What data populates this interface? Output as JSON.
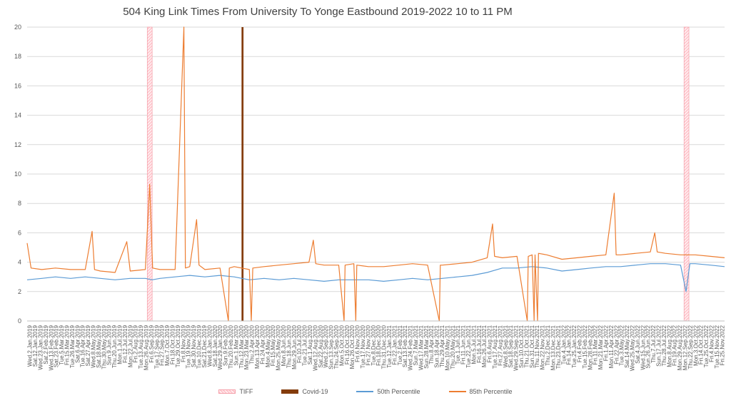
{
  "chart_data": {
    "type": "line",
    "title": "504 King Link Times From University To Yonge Eastbound 2019-2022 10 to 11 PM",
    "ylim": [
      0,
      20
    ],
    "yticks": [
      0,
      2,
      4,
      6,
      8,
      10,
      12,
      14,
      16,
      18,
      20
    ],
    "xlim": [
      "2019-01-02",
      "2022-11-30"
    ],
    "grid": "horizontal",
    "legend_position": "bottom",
    "x_tick_labels": [
      "Wed.2.Jan.2019",
      "Sat.12.Jan.2019",
      "Wed.23.Jan.2019",
      "Sat.2.Feb.2019",
      "Wed.13.Feb.2019",
      "Sat.23.Feb.2019",
      "Tue.5.Mar.2019",
      "Fri.15.Mar.2019",
      "Tue.26.Mar.2019",
      "Sat.6.Apr.2019",
      "Tue.16.Apr.2019",
      "Sat.27.Apr.2019",
      "Wed.8.May.2019",
      "Sat.18.May.2019",
      "Thu.30.May.2019",
      "Sun.9.Jun.2019",
      "Thu.20.Jun.2019",
      "Mon.1.Jul.2019",
      "Fri.12.Jul.2019",
      "Mon.22.Jul.2019",
      "Fri.2.Aug.2019",
      "Tue.13.Aug.2019",
      "Mon.26.Aug.2019",
      "Fri.6.Sep.2019",
      "Tue.17.Sep.2019",
      "Fri.27.Sep.2019",
      "Mon.7.Oct.2019",
      "Fri.18.Oct.2019",
      "Tue.29.Oct.2019",
      "Fri.8.Nov.2019",
      "Tue.19.Nov.2019",
      "Sat.30.Nov.2019",
      "Tue.10.Dec.2019",
      "Sat.21.Dec.2019",
      "Wed.8.Jan.2020",
      "Sat.18.Jan.2020",
      "Wed.29.Jan.2020",
      "Sun.9.Feb.2020",
      "Thu.20.Feb.2020",
      "Sun.1.Mar.2020",
      "Thu.12.Mar.2020",
      "Mon.23.Mar.2020",
      "Thu.2.Apr.2020",
      "Mon.13.Apr.2020",
      "Fri.24.Apr.2020",
      "Mon.4.May.2020",
      "Fri.15.May.2020",
      "Mon.25.May.2020",
      "Mon.8.Jun.2020",
      "Thu.18.Jun.2020",
      "Mon.29.Jun.2020",
      "Fri.10.Jul.2020",
      "Tue.21.Jul.2020",
      "Sat.1.Aug.2020",
      "Wed.12.Aug.2020",
      "Sat.22.Aug.2020",
      "Wed.2.Sep.2020",
      "Sun.13.Sep.2020",
      "Thu.24.Sep.2020",
      "Mon.5.Oct.2020",
      "Fri.16.Oct.2020",
      "Mon.26.Oct.2020",
      "Fri.6.Nov.2020",
      "Tue.17.Nov.2020",
      "Fri.27.Nov.2020",
      "Tue.8.Dec.2020",
      "Fri.18.Dec.2020",
      "Thu.31.Dec.2020",
      "Tue.12.Jan.2021",
      "Fri.22.Jan.2021",
      "Tue.2.Feb.2021",
      "Sat.13.Feb.2021",
      "Wed.24.Feb.2021",
      "Sun.7.Mar.2021",
      "Wed.17.Mar.2021",
      "Sun.28.Mar.2021",
      "Thu.8.Apr.2021",
      "Sun.18.Apr.2021",
      "Thu.29.Apr.2021",
      "Mon.10.May.2021",
      "Thu.20.May.2021",
      "Tue.1.Jun.2021",
      "Fri.11.Jun.2021",
      "Tue.22.Jun.2021",
      "Mon.5.Jul.2021",
      "Fri.16.Jul.2021",
      "Mon.26.Jul.2021",
      "Fri.6.Aug.2021",
      "Tue.17.Aug.2021",
      "Fri.27.Aug.2021",
      "Wed.8.Sep.2021",
      "Sat.18.Sep.2021",
      "Wed.29.Sep.2021",
      "Sun.10.Oct.2021",
      "Thu.21.Oct.2021",
      "Sun.31.Oct.2021",
      "Thu.11.Nov.2021",
      "Mon.22.Nov.2021",
      "Thu.2.Dec.2021",
      "Mon.13.Dec.2021",
      "Thu.23.Dec.2021",
      "Tue.4.Jan.2022",
      "Fri.14.Jan.2022",
      "Tue.25.Jan.2022",
      "Fri.4.Feb.2022",
      "Tue.15.Feb.2022",
      "Mon.28.Feb.2022",
      "Fri.11.Mar.2022",
      "Mon.21.Mar.2022",
      "Fri.1.Apr.2022",
      "Mon.11.Apr.2022",
      "Fri.22.Apr.2022",
      "Tue.3.May.2022",
      "Sat.14.May.2022",
      "Wed.25.May.2022",
      "Sat.4.Jun.2022",
      "Wed.15.Jun.2022",
      "Sun.26.Jun.2022",
      "Thu.7.Jul.2022",
      "Sun.17.Jul.2022",
      "Thu.28.Jul.2022",
      "Mon.8.Aug.2022",
      "Fri.19.Aug.2022",
      "Mon.29.Aug.2022",
      "Mon.12.Sep.2022",
      "Thu.22.Sep.2022",
      "Mon.3.Oct.2022",
      "Fri.14.Oct.2022",
      "Tue.25.Oct.2022",
      "Fri.4.Nov.2022",
      "Tue.15.Nov.2022",
      "Fri.25.Nov.2022"
    ],
    "events": [
      {
        "name": "TIFF",
        "start": "2019-09-05",
        "end": "2019-09-15",
        "value": 20,
        "color": "#ffc7ce"
      },
      {
        "name": "TIFF",
        "start": "2022-09-08",
        "end": "2022-09-18",
        "value": 20,
        "color": "#ffc7ce"
      },
      {
        "name": "Covid-19",
        "start": "2020-03-16",
        "end": "2020-03-20",
        "value": 20,
        "color": "#843c0c"
      }
    ],
    "series": [
      {
        "name": "50th Percentile",
        "color": "#5b9bd5",
        "points": [
          [
            "2019-01-02",
            2.8
          ],
          [
            "2019-02-01",
            2.9
          ],
          [
            "2019-03-01",
            3.0
          ],
          [
            "2019-04-01",
            2.9
          ],
          [
            "2019-05-01",
            3.0
          ],
          [
            "2019-06-01",
            2.9
          ],
          [
            "2019-07-01",
            2.8
          ],
          [
            "2019-08-01",
            2.9
          ],
          [
            "2019-09-01",
            2.9
          ],
          [
            "2019-09-15",
            2.8
          ],
          [
            "2019-10-01",
            2.9
          ],
          [
            "2019-11-01",
            3.0
          ],
          [
            "2019-12-01",
            3.1
          ],
          [
            "2020-01-01",
            3.0
          ],
          [
            "2020-02-01",
            3.1
          ],
          [
            "2020-03-01",
            3.0
          ],
          [
            "2020-04-01",
            2.8
          ],
          [
            "2020-05-01",
            2.9
          ],
          [
            "2020-06-01",
            2.8
          ],
          [
            "2020-07-01",
            2.9
          ],
          [
            "2020-08-01",
            2.8
          ],
          [
            "2020-09-01",
            2.7
          ],
          [
            "2020-10-01",
            2.8
          ],
          [
            "2020-11-01",
            2.8
          ],
          [
            "2020-12-01",
            2.8
          ],
          [
            "2021-01-01",
            2.7
          ],
          [
            "2021-02-01",
            2.8
          ],
          [
            "2021-03-01",
            2.9
          ],
          [
            "2021-04-01",
            2.8
          ],
          [
            "2021-05-01",
            2.9
          ],
          [
            "2021-06-01",
            3.0
          ],
          [
            "2021-07-01",
            3.1
          ],
          [
            "2021-08-01",
            3.3
          ],
          [
            "2021-09-01",
            3.6
          ],
          [
            "2021-10-01",
            3.6
          ],
          [
            "2021-11-01",
            3.7
          ],
          [
            "2021-12-01",
            3.6
          ],
          [
            "2022-01-01",
            3.4
          ],
          [
            "2022-02-01",
            3.5
          ],
          [
            "2022-03-01",
            3.6
          ],
          [
            "2022-04-01",
            3.7
          ],
          [
            "2022-05-01",
            3.7
          ],
          [
            "2022-06-01",
            3.8
          ],
          [
            "2022-07-01",
            3.9
          ],
          [
            "2022-08-01",
            3.9
          ],
          [
            "2022-09-01",
            3.8
          ],
          [
            "2022-09-12",
            2.0
          ],
          [
            "2022-09-20",
            3.9
          ],
          [
            "2022-10-01",
            3.9
          ],
          [
            "2022-11-01",
            3.8
          ],
          [
            "2022-11-30",
            3.7
          ]
        ]
      },
      {
        "name": "85th Percentile",
        "color": "#ed7d31",
        "points": [
          [
            "2019-01-02",
            5.3
          ],
          [
            "2019-01-10",
            3.6
          ],
          [
            "2019-02-01",
            3.5
          ],
          [
            "2019-03-01",
            3.6
          ],
          [
            "2019-04-01",
            3.5
          ],
          [
            "2019-05-01",
            3.5
          ],
          [
            "2019-05-15",
            6.1
          ],
          [
            "2019-05-20",
            3.5
          ],
          [
            "2019-06-01",
            3.4
          ],
          [
            "2019-07-01",
            3.3
          ],
          [
            "2019-07-25",
            5.4
          ],
          [
            "2019-08-01",
            3.4
          ],
          [
            "2019-09-01",
            3.5
          ],
          [
            "2019-09-10",
            9.3
          ],
          [
            "2019-09-16",
            3.6
          ],
          [
            "2019-10-01",
            3.5
          ],
          [
            "2019-11-01",
            3.5
          ],
          [
            "2019-11-19",
            20.0
          ],
          [
            "2019-11-22",
            3.6
          ],
          [
            "2019-12-01",
            3.7
          ],
          [
            "2019-12-15",
            6.9
          ],
          [
            "2019-12-20",
            3.8
          ],
          [
            "2020-01-01",
            3.5
          ],
          [
            "2020-02-01",
            3.6
          ],
          [
            "2020-02-18",
            0.0
          ],
          [
            "2020-02-20",
            3.6
          ],
          [
            "2020-03-01",
            3.7
          ],
          [
            "2020-04-01",
            3.5
          ],
          [
            "2020-04-05",
            0.0
          ],
          [
            "2020-04-08",
            3.6
          ],
          [
            "2020-05-01",
            3.7
          ],
          [
            "2020-06-01",
            3.8
          ],
          [
            "2020-07-01",
            3.9
          ],
          [
            "2020-08-01",
            4.0
          ],
          [
            "2020-08-10",
            5.5
          ],
          [
            "2020-08-15",
            3.9
          ],
          [
            "2020-09-01",
            3.8
          ],
          [
            "2020-10-01",
            3.8
          ],
          [
            "2020-10-12",
            0.0
          ],
          [
            "2020-10-14",
            3.8
          ],
          [
            "2020-11-01",
            3.9
          ],
          [
            "2020-11-05",
            0.0
          ],
          [
            "2020-11-07",
            3.8
          ],
          [
            "2020-12-01",
            3.7
          ],
          [
            "2021-01-01",
            3.7
          ],
          [
            "2021-02-01",
            3.8
          ],
          [
            "2021-03-01",
            3.9
          ],
          [
            "2021-04-01",
            3.8
          ],
          [
            "2021-04-25",
            0.0
          ],
          [
            "2021-04-27",
            3.8
          ],
          [
            "2021-05-01",
            3.8
          ],
          [
            "2021-06-01",
            3.9
          ],
          [
            "2021-07-01",
            4.0
          ],
          [
            "2021-08-01",
            4.3
          ],
          [
            "2021-08-12",
            6.6
          ],
          [
            "2021-08-16",
            4.4
          ],
          [
            "2021-09-01",
            4.3
          ],
          [
            "2021-10-01",
            4.4
          ],
          [
            "2021-10-22",
            0.0
          ],
          [
            "2021-10-24",
            4.4
          ],
          [
            "2021-11-01",
            4.5
          ],
          [
            "2021-11-05",
            0.0
          ],
          [
            "2021-11-07",
            4.5
          ],
          [
            "2021-11-12",
            0.0
          ],
          [
            "2021-11-14",
            4.6
          ],
          [
            "2021-12-01",
            4.5
          ],
          [
            "2022-01-01",
            4.2
          ],
          [
            "2022-02-01",
            4.3
          ],
          [
            "2022-03-01",
            4.4
          ],
          [
            "2022-04-01",
            4.5
          ],
          [
            "2022-04-18",
            8.7
          ],
          [
            "2022-04-22",
            4.5
          ],
          [
            "2022-05-01",
            4.5
          ],
          [
            "2022-06-01",
            4.6
          ],
          [
            "2022-07-01",
            4.7
          ],
          [
            "2022-07-10",
            6.0
          ],
          [
            "2022-07-15",
            4.7
          ],
          [
            "2022-08-01",
            4.6
          ],
          [
            "2022-09-01",
            4.5
          ],
          [
            "2022-10-01",
            4.5
          ],
          [
            "2022-11-01",
            4.4
          ],
          [
            "2022-11-30",
            4.3
          ]
        ]
      }
    ]
  },
  "legend": {
    "tiff": "TIFF",
    "covid": "Covid-19",
    "p50": "50th Percentile",
    "p85": "85th Percentile"
  }
}
